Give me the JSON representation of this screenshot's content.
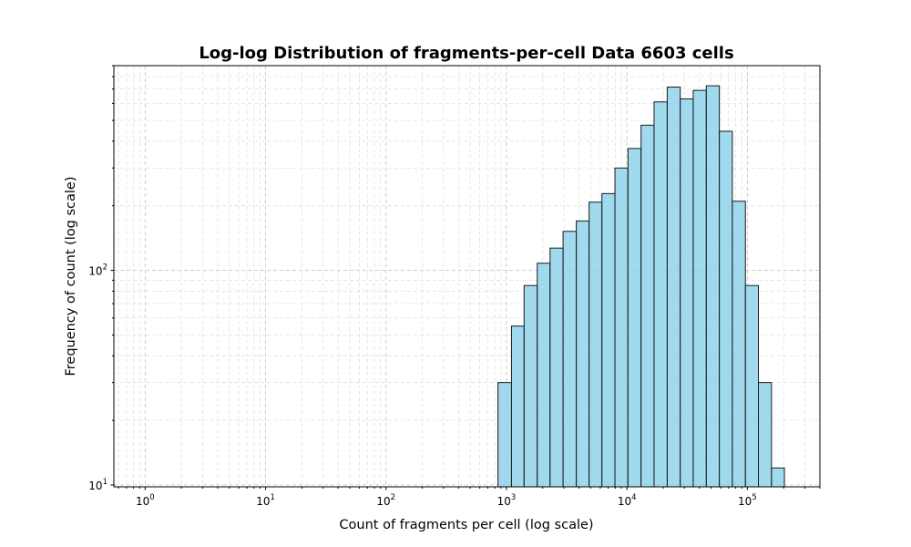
{
  "chart_data": {
    "type": "bar",
    "title": "Log-log Distribution of fragments-per-cell Data 6603 cells",
    "xlabel": "Count of fragments per cell (log scale)",
    "ylabel": "Frequency of count (log scale)",
    "x_scale": "log",
    "y_scale": "log",
    "xlim": [
      0.55,
      400000
    ],
    "ylim": [
      9.8,
      900
    ],
    "grid": true,
    "x_ticks": [
      {
        "base": "10",
        "exp": "0",
        "value": 1
      },
      {
        "base": "10",
        "exp": "1",
        "value": 10
      },
      {
        "base": "10",
        "exp": "2",
        "value": 100
      },
      {
        "base": "10",
        "exp": "3",
        "value": 1000
      },
      {
        "base": "10",
        "exp": "4",
        "value": 10000
      },
      {
        "base": "10",
        "exp": "5",
        "value": 100000
      }
    ],
    "y_ticks": [
      {
        "base": "10",
        "exp": "1",
        "value": 10
      },
      {
        "base": "10",
        "exp": "2",
        "value": 100
      }
    ],
    "bars": [
      {
        "x0": 850,
        "x1": 1100,
        "count": 30
      },
      {
        "x0": 1100,
        "x1": 1400,
        "count": 55
      },
      {
        "x0": 1400,
        "x1": 1800,
        "count": 85
      },
      {
        "x0": 1800,
        "x1": 2300,
        "count": 108
      },
      {
        "x0": 2300,
        "x1": 2950,
        "count": 127
      },
      {
        "x0": 2950,
        "x1": 3800,
        "count": 152
      },
      {
        "x0": 3800,
        "x1": 4850,
        "count": 170
      },
      {
        "x0": 4850,
        "x1": 6200,
        "count": 208
      },
      {
        "x0": 6200,
        "x1": 7950,
        "count": 228
      },
      {
        "x0": 7950,
        "x1": 10200,
        "count": 300
      },
      {
        "x0": 10200,
        "x1": 13100,
        "count": 370
      },
      {
        "x0": 13100,
        "x1": 16800,
        "count": 475
      },
      {
        "x0": 16800,
        "x1": 21600,
        "count": 610
      },
      {
        "x0": 21600,
        "x1": 27700,
        "count": 715
      },
      {
        "x0": 27700,
        "x1": 35500,
        "count": 630
      },
      {
        "x0": 35500,
        "x1": 45600,
        "count": 690
      },
      {
        "x0": 45600,
        "x1": 58500,
        "count": 725
      },
      {
        "x0": 58500,
        "x1": 75000,
        "count": 445
      },
      {
        "x0": 75000,
        "x1": 96300,
        "count": 210
      },
      {
        "x0": 96300,
        "x1": 123500,
        "count": 85
      },
      {
        "x0": 123500,
        "x1": 158500,
        "count": 30
      },
      {
        "x0": 158500,
        "x1": 203000,
        "count": 12
      }
    ],
    "bar_color": "#87ceeb",
    "edge_color": "#1a1a1a"
  }
}
